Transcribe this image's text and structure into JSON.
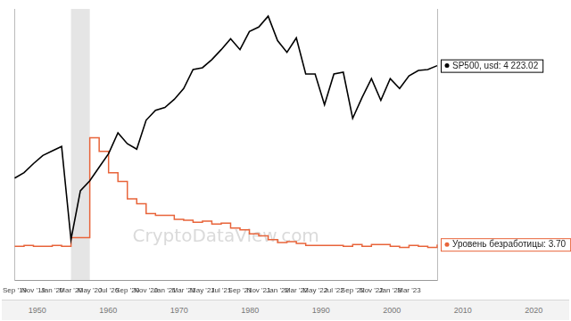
{
  "chart_data": {
    "type": "line",
    "categories": [
      "Sep '19",
      null,
      "Nov '19",
      null,
      "Jan '20",
      null,
      "Mar '20",
      null,
      "May '20",
      null,
      "Jul '20",
      null,
      "Sep '20",
      null,
      "Nov '20",
      null,
      "Jan '21",
      null,
      "Mar '21",
      null,
      "May '21",
      null,
      "Jul '21",
      null,
      "Sep '21",
      null,
      "Nov '21",
      null,
      "Jan '22",
      null,
      "Mar '22",
      null,
      "May '22",
      null,
      "Jul '22",
      null,
      "Sep '22",
      null,
      "Nov '22",
      null,
      "Jan '23",
      null,
      "Mar '23",
      null,
      null,
      null
    ],
    "series": [
      {
        "name": "SP500",
        "label": "SP500, usd: 4 223.02",
        "color": "#000000",
        "line_style": "solid",
        "values": [
          2980,
          3040,
          3140,
          3230,
          3280,
          3330,
          2300,
          2840,
          2950,
          3100,
          3250,
          3480,
          3360,
          3300,
          3620,
          3730,
          3760,
          3850,
          3970,
          4180,
          4200,
          4290,
          4400,
          4520,
          4400,
          4600,
          4650,
          4770,
          4500,
          4370,
          4530,
          4130,
          4130,
          3790,
          4130,
          4150,
          3640,
          3870,
          4080,
          3840,
          4080,
          3970,
          4110,
          4170,
          4180,
          4223.02
        ]
      },
      {
        "name": "Уровень безработицы",
        "label": "Уровень безработицы: 3.70",
        "color": "#e8643a",
        "line_style": "step",
        "axis": "y2",
        "values": [
          3.5,
          3.6,
          3.5,
          3.5,
          3.6,
          3.5,
          4.4,
          4.4,
          14.7,
          13.3,
          11.1,
          10.2,
          8.4,
          7.9,
          6.9,
          6.7,
          6.7,
          6.3,
          6.2,
          6.0,
          6.1,
          5.8,
          5.9,
          5.4,
          5.2,
          4.8,
          4.6,
          4.2,
          3.9,
          4.0,
          3.8,
          3.6,
          3.6,
          3.6,
          3.6,
          3.5,
          3.7,
          3.5,
          3.7,
          3.7,
          3.5,
          3.4,
          3.6,
          3.5,
          3.4,
          3.7
        ]
      }
    ],
    "ylim": [
      1850,
      4850
    ],
    "y2lim": [
      0,
      28
    ],
    "grid": false,
    "tick_labels": "x",
    "highlight": {
      "from": "Mar '20",
      "to": "May '20"
    },
    "watermark": "CryptoDataView.com"
  },
  "navigator_labels": [
    "1950",
    "1960",
    "1970",
    "1980",
    "1990",
    "2000",
    "2010",
    "2020"
  ]
}
